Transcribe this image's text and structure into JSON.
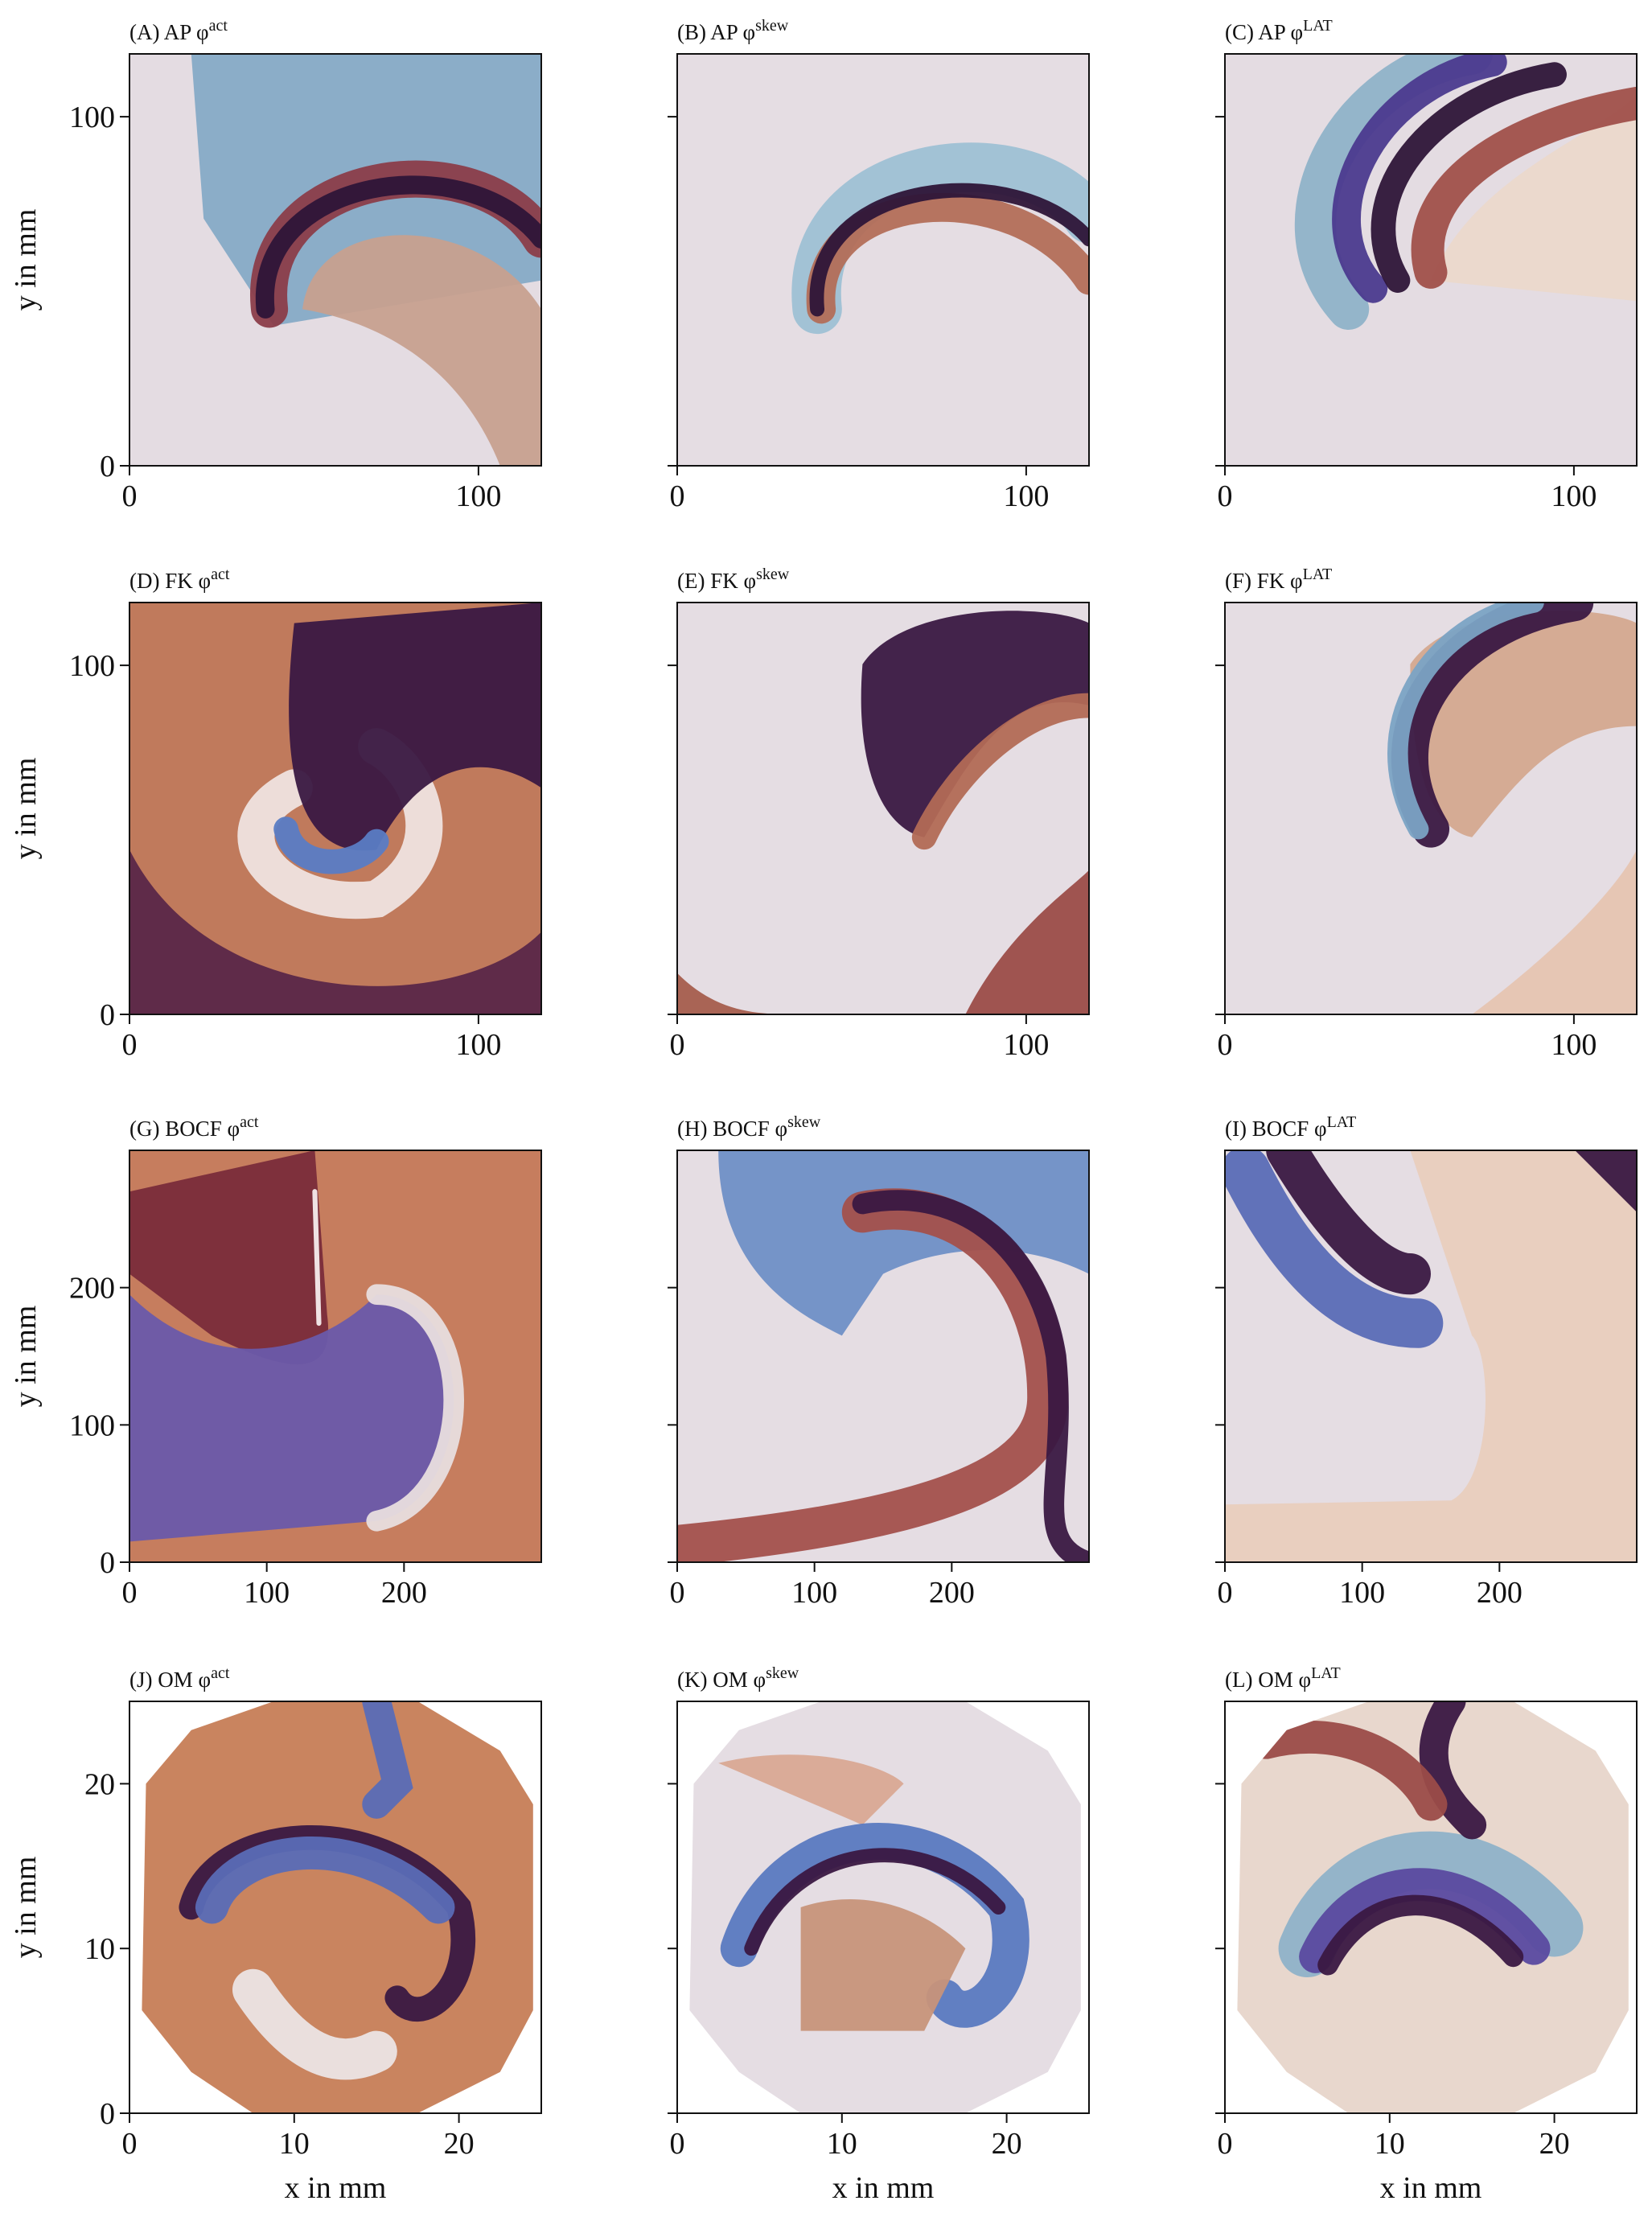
{
  "chart_data": [
    {
      "type": "heatmap",
      "title": "(A) AP φ",
      "superscript": "act",
      "ylabel": "y in mm",
      "xlim": [
        0,
        118
      ],
      "ylim": [
        0,
        118
      ],
      "xticks": [
        0,
        100
      ],
      "yticks": [
        0,
        100
      ],
      "ytick_labels": true
    },
    {
      "type": "heatmap",
      "title": "(B) AP φ",
      "superscript": "skew",
      "xlim": [
        0,
        118
      ],
      "ylim": [
        0,
        118
      ],
      "xticks": [
        0,
        100
      ],
      "yticks": [
        0,
        100
      ],
      "ytick_labels": false
    },
    {
      "type": "heatmap",
      "title": "(C) AP φ",
      "superscript": "LAT",
      "xlim": [
        0,
        118
      ],
      "ylim": [
        0,
        118
      ],
      "xticks": [
        0,
        100
      ],
      "yticks": [
        0,
        100
      ],
      "ytick_labels": false
    },
    {
      "type": "heatmap",
      "title": "(D) FK φ",
      "superscript": "act",
      "ylabel": "y in mm",
      "xlim": [
        0,
        118
      ],
      "ylim": [
        0,
        118
      ],
      "xticks": [
        0,
        100
      ],
      "yticks": [
        0,
        100
      ],
      "ytick_labels": true
    },
    {
      "type": "heatmap",
      "title": "(E) FK φ",
      "superscript": "skew",
      "xlim": [
        0,
        118
      ],
      "ylim": [
        0,
        118
      ],
      "xticks": [
        0,
        100
      ],
      "yticks": [
        0,
        100
      ],
      "ytick_labels": false
    },
    {
      "type": "heatmap",
      "title": "(F) FK φ",
      "superscript": "LAT",
      "xlim": [
        0,
        118
      ],
      "ylim": [
        0,
        118
      ],
      "xticks": [
        0,
        100
      ],
      "yticks": [
        0,
        100
      ],
      "ytick_labels": false
    },
    {
      "type": "heatmap",
      "title": "(G) BOCF φ",
      "superscript": "act",
      "ylabel": "y in mm",
      "xlim": [
        0,
        300
      ],
      "ylim": [
        0,
        300
      ],
      "xticks": [
        0,
        100,
        200
      ],
      "yticks": [
        0,
        100,
        200
      ],
      "ytick_labels": true
    },
    {
      "type": "heatmap",
      "title": "(H) BOCF φ",
      "superscript": "skew",
      "xlim": [
        0,
        300
      ],
      "ylim": [
        0,
        300
      ],
      "xticks": [
        0,
        100,
        200
      ],
      "yticks": [
        0,
        100,
        200
      ],
      "ytick_labels": false
    },
    {
      "type": "heatmap",
      "title": "(I) BOCF φ",
      "superscript": "LAT",
      "xlim": [
        0,
        300
      ],
      "ylim": [
        0,
        300
      ],
      "xticks": [
        0,
        100,
        200
      ],
      "yticks": [
        0,
        100,
        200
      ],
      "ytick_labels": false
    },
    {
      "type": "heatmap",
      "title": "(J) OM φ",
      "superscript": "act",
      "ylabel": "y in mm",
      "xlabel": "x in mm",
      "xlim": [
        0,
        25
      ],
      "ylim": [
        0,
        25
      ],
      "xticks": [
        0,
        10,
        20
      ],
      "yticks": [
        0,
        10,
        20
      ],
      "ytick_labels": true
    },
    {
      "type": "heatmap",
      "title": "(K) OM φ",
      "superscript": "skew",
      "xlabel": "x in mm",
      "xlim": [
        0,
        25
      ],
      "ylim": [
        0,
        25
      ],
      "xticks": [
        0,
        10,
        20
      ],
      "yticks": [
        0,
        10,
        20
      ],
      "ytick_labels": false
    },
    {
      "type": "heatmap",
      "title": "(L) OM φ",
      "superscript": "LAT",
      "xlabel": "x in mm",
      "xlim": [
        0,
        25
      ],
      "ylim": [
        0,
        25
      ],
      "xticks": [
        0,
        10,
        20
      ],
      "yticks": [
        0,
        10,
        20
      ],
      "ytick_labels": false
    }
  ]
}
